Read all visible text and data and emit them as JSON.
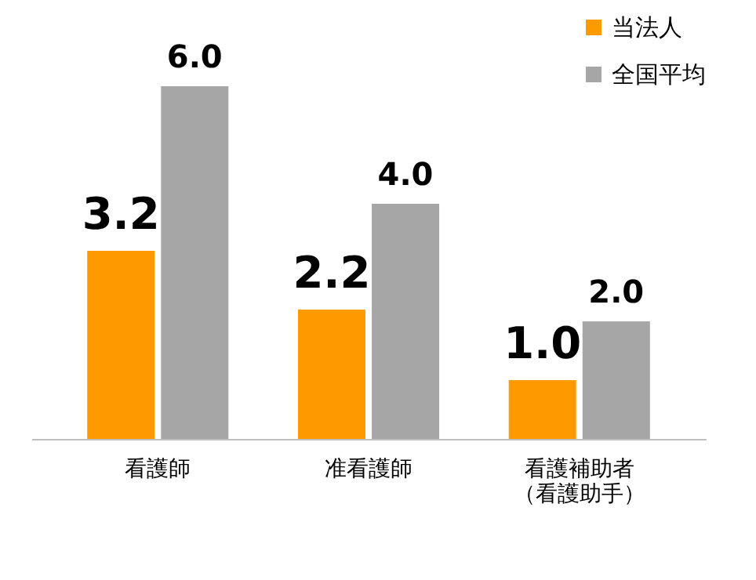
{
  "chart_data": {
    "type": "bar",
    "categories": [
      "看護師",
      "准看護師",
      "看護補助者（看護助手）"
    ],
    "series": [
      {
        "name": "当法人",
        "color": "#ff9900",
        "values": [
          3.2,
          2.2,
          1.0
        ],
        "value_labels": [
          "3.2",
          "2.2",
          "1.0"
        ]
      },
      {
        "name": "全国平均",
        "color": "#a6a6a6",
        "values": [
          6.0,
          4.0,
          2.0
        ],
        "value_labels": [
          "6.0",
          "4.0",
          "2.0"
        ]
      }
    ],
    "legend": "top right"
  }
}
